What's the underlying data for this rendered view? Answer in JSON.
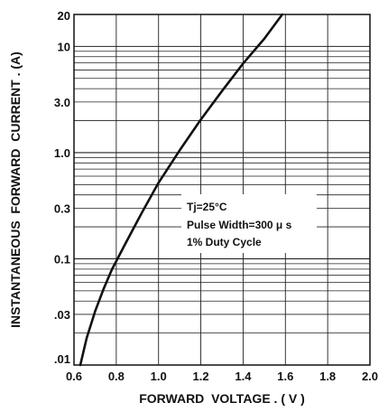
{
  "chart_data": {
    "type": "line",
    "title": "",
    "xlabel": "FORWARD  VOLTAGE . ( V )",
    "ylabel": "INSTANTANEOUS  FORWARD  CURRENT . (A)",
    "xlim": [
      0.6,
      2.0
    ],
    "ylim": [
      0.01,
      20
    ],
    "yscale": "log",
    "grid": true,
    "x_ticks": [
      "0.6",
      "0.8",
      "1.0",
      "1.2",
      "1.4",
      "1.6",
      "1.8",
      "2.0"
    ],
    "y_ticks": [
      {
        "value": 20,
        "label": "20"
      },
      {
        "value": 10,
        "label": "10"
      },
      {
        "value": 3,
        "label": "3.0"
      },
      {
        "value": 1,
        "label": "1.0"
      },
      {
        "value": 0.3,
        "label": "0.3"
      },
      {
        "value": 0.1,
        "label": "0.1"
      },
      {
        "value": 0.03,
        "label": ".03"
      },
      {
        "value": 0.01,
        "label": ".01"
      }
    ],
    "series": [
      {
        "name": "",
        "x": [
          0.63,
          0.66,
          0.7,
          0.74,
          0.78,
          0.84,
          0.92,
          1.0,
          1.1,
          1.2,
          1.3,
          1.4,
          1.5,
          1.585
        ],
        "y": [
          0.01,
          0.018,
          0.032,
          0.052,
          0.08,
          0.135,
          0.27,
          0.52,
          1.05,
          2.05,
          3.8,
          6.9,
          11.8,
          20
        ]
      }
    ],
    "annotation": {
      "lines": [
        "Tj=25°C",
        "Pulse Width=300 μ s",
        "1% Duty  Cycle"
      ]
    }
  }
}
